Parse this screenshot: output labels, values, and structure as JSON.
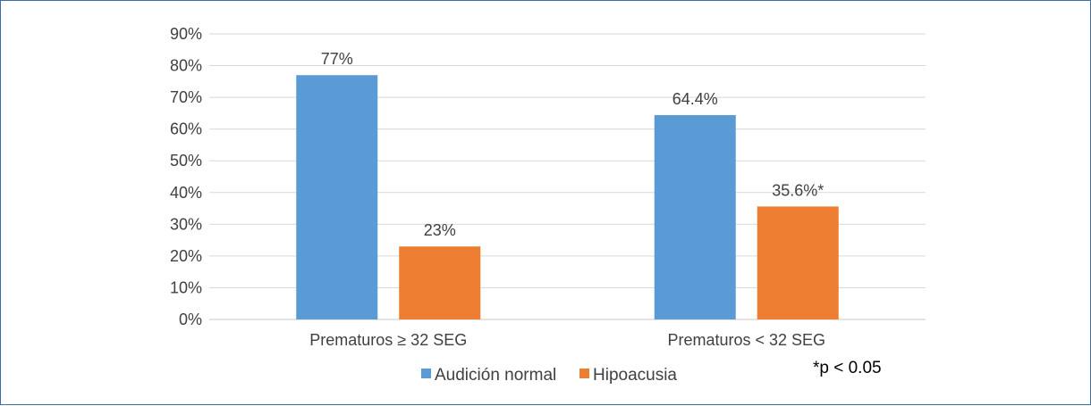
{
  "chart_data": {
    "type": "bar",
    "title": "",
    "xlabel": "",
    "ylabel": "",
    "ylim": [
      0,
      90
    ],
    "y_ticks": [
      "0%",
      "10%",
      "20%",
      "30%",
      "40%",
      "50%",
      "60%",
      "70%",
      "80%",
      "90%"
    ],
    "grid": true,
    "legend_position": "bottom",
    "categories": [
      "Prematuros ≥ 32 SEG",
      "Prematuros < 32 SEG"
    ],
    "series": [
      {
        "name": "Audición normal",
        "color": "#5b9bd5",
        "values": [
          77,
          64.4
        ],
        "labels": [
          "77%",
          "64.4%"
        ]
      },
      {
        "name": "Hipoacusia",
        "color": "#ed7d31",
        "values": [
          23,
          35.6
        ],
        "labels": [
          "23%",
          "35.6%*"
        ]
      }
    ],
    "annotation": "*p < 0.05"
  }
}
